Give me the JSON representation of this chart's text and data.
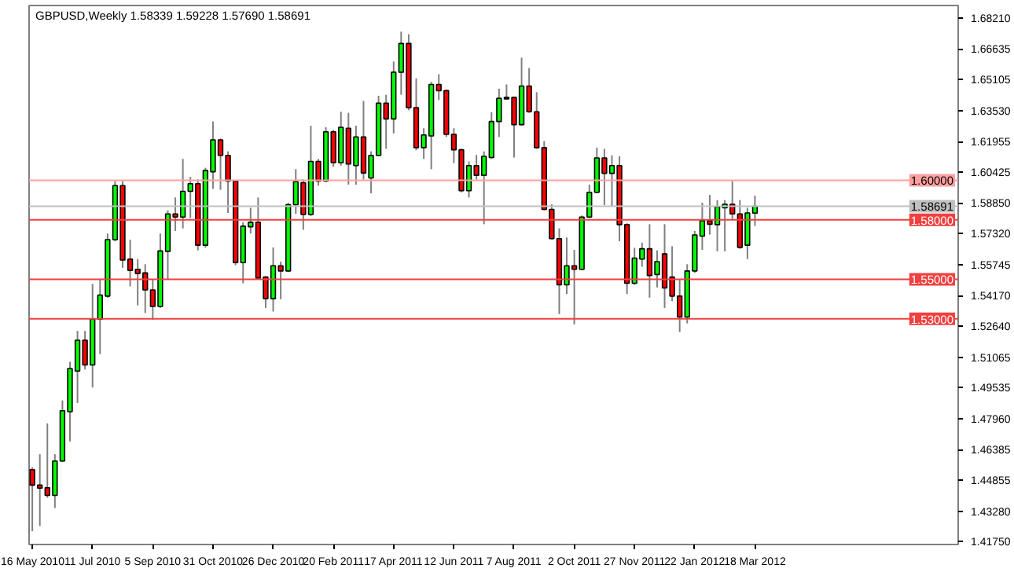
{
  "chart_data": {
    "type": "candlestick",
    "title": "GBPUSD,Weekly  1.58339 1.59228 1.57690 1.58691",
    "x": [
      "2010-05-16",
      "2010-05-23",
      "2010-05-30",
      "2010-06-06",
      "2010-06-13",
      "2010-06-20",
      "2010-06-27",
      "2010-07-04",
      "2010-07-11",
      "2010-07-18",
      "2010-07-25",
      "2010-08-01",
      "2010-08-08",
      "2010-08-15",
      "2010-08-22",
      "2010-08-29",
      "2010-09-05",
      "2010-09-12",
      "2010-09-19",
      "2010-09-26",
      "2010-10-03",
      "2010-10-10",
      "2010-10-17",
      "2010-10-24",
      "2010-10-31",
      "2010-11-07",
      "2010-11-14",
      "2010-11-21",
      "2010-11-28",
      "2010-12-05",
      "2010-12-12",
      "2010-12-19",
      "2010-12-26",
      "2011-01-02",
      "2011-01-09",
      "2011-01-16",
      "2011-01-23",
      "2011-01-30",
      "2011-02-06",
      "2011-02-13",
      "2011-02-20",
      "2011-02-27",
      "2011-03-06",
      "2011-03-13",
      "2011-03-20",
      "2011-03-27",
      "2011-04-03",
      "2011-04-10",
      "2011-04-17",
      "2011-04-24",
      "2011-05-01",
      "2011-05-08",
      "2011-05-15",
      "2011-05-22",
      "2011-05-29",
      "2011-06-05",
      "2011-06-12",
      "2011-06-19",
      "2011-06-26",
      "2011-07-03",
      "2011-07-10",
      "2011-07-17",
      "2011-07-24",
      "2011-07-31",
      "2011-08-07",
      "2011-08-14",
      "2011-08-21",
      "2011-08-28",
      "2011-09-04",
      "2011-09-11",
      "2011-09-18",
      "2011-09-25",
      "2011-10-02",
      "2011-10-09",
      "2011-10-16",
      "2011-10-23",
      "2011-10-30",
      "2011-11-06",
      "2011-11-13",
      "2011-11-20",
      "2011-11-27",
      "2011-12-04",
      "2011-12-11",
      "2011-12-18",
      "2011-12-25",
      "2012-01-01",
      "2012-01-08",
      "2012-01-15",
      "2012-01-22",
      "2012-01-29",
      "2012-02-05",
      "2012-02-12",
      "2012-02-19",
      "2012-02-26",
      "2012-03-04",
      "2012-03-11",
      "2012-03-18"
    ],
    "ohlc": [
      [
        1.4538,
        1.4551,
        1.4227,
        1.446
      ],
      [
        1.446,
        1.4616,
        1.4253,
        1.4445
      ],
      [
        1.4447,
        1.4772,
        1.4396,
        1.4408
      ],
      [
        1.4408,
        1.4616,
        1.4344,
        1.4582
      ],
      [
        1.4582,
        1.4888,
        1.4577,
        1.4836
      ],
      [
        1.4831,
        1.5083,
        1.4681,
        1.5049
      ],
      [
        1.5036,
        1.5239,
        1.4875,
        1.5192
      ],
      [
        1.5192,
        1.5239,
        1.5044,
        1.5067
      ],
      [
        1.5067,
        1.5477,
        1.4953,
        1.5298
      ],
      [
        1.5298,
        1.5498,
        1.5122,
        1.542
      ],
      [
        1.5415,
        1.5731,
        1.5407,
        1.57
      ],
      [
        1.57,
        1.5996,
        1.5692,
        1.5973
      ],
      [
        1.5973,
        1.5996,
        1.5558,
        1.5597
      ],
      [
        1.5602,
        1.57,
        1.5464,
        1.5545
      ],
      [
        1.555,
        1.5602,
        1.5368,
        1.5529
      ],
      [
        1.5532,
        1.5576,
        1.5329,
        1.5446
      ],
      [
        1.5446,
        1.5498,
        1.5296,
        1.5363
      ],
      [
        1.5363,
        1.5731,
        1.5355,
        1.5643
      ],
      [
        1.5641,
        1.5848,
        1.5498,
        1.583
      ],
      [
        1.583,
        1.5913,
        1.5744,
        1.5814
      ],
      [
        1.5814,
        1.6108,
        1.5757,
        1.5944
      ],
      [
        1.5944,
        1.6017,
        1.5809,
        1.5983
      ],
      [
        1.5983,
        1.6004,
        1.5646,
        1.5672
      ],
      [
        1.5672,
        1.6063,
        1.5659,
        1.605
      ],
      [
        1.6043,
        1.6297,
        1.5957,
        1.6204
      ],
      [
        1.6204,
        1.6211,
        1.5952,
        1.6126
      ],
      [
        1.6126,
        1.6146,
        1.5835,
        1.5996
      ],
      [
        1.5996,
        1.6001,
        1.5571,
        1.5584
      ],
      [
        1.5584,
        1.5788,
        1.548,
        1.5768
      ],
      [
        1.5765,
        1.5861,
        1.5731,
        1.5788
      ],
      [
        1.5788,
        1.5913,
        1.5498,
        1.5506
      ],
      [
        1.5511,
        1.5516,
        1.5355,
        1.5402
      ],
      [
        1.5402,
        1.5661,
        1.5337,
        1.5568
      ],
      [
        1.5568,
        1.5589,
        1.5399,
        1.5542
      ],
      [
        1.5542,
        1.5887,
        1.5537,
        1.5877
      ],
      [
        1.5877,
        1.6056,
        1.583,
        1.5993
      ],
      [
        1.5988,
        1.6004,
        1.575,
        1.5827
      ],
      [
        1.5827,
        1.6276,
        1.582,
        1.6095
      ],
      [
        1.6095,
        1.6108,
        1.5973,
        1.5996
      ],
      [
        1.5996,
        1.6268,
        1.5991,
        1.6245
      ],
      [
        1.6245,
        1.6255,
        1.6069,
        1.6089
      ],
      [
        1.6089,
        1.6346,
        1.6074,
        1.6268
      ],
      [
        1.6263,
        1.6341,
        1.5978,
        1.6082
      ],
      [
        1.6074,
        1.6276,
        1.5978,
        1.6219
      ],
      [
        1.6219,
        1.6401,
        1.6004,
        1.6037
      ],
      [
        1.6012,
        1.6146,
        1.5934,
        1.6126
      ],
      [
        1.6126,
        1.6427,
        1.6121,
        1.639
      ],
      [
        1.639,
        1.6432,
        1.6159,
        1.631
      ],
      [
        1.631,
        1.66,
        1.6237,
        1.6546
      ],
      [
        1.6546,
        1.6751,
        1.6432,
        1.6691
      ],
      [
        1.6691,
        1.6738,
        1.6354,
        1.6367
      ],
      [
        1.6367,
        1.6515,
        1.6152,
        1.6165
      ],
      [
        1.6165,
        1.6263,
        1.6108,
        1.6229
      ],
      [
        1.6224,
        1.6497,
        1.6056,
        1.6484
      ],
      [
        1.6484,
        1.6536,
        1.6406,
        1.6453
      ],
      [
        1.6453,
        1.6458,
        1.6219,
        1.6232
      ],
      [
        1.6232,
        1.6263,
        1.6087,
        1.6154
      ],
      [
        1.6154,
        1.6159,
        1.5939,
        1.5947
      ],
      [
        1.5947,
        1.6095,
        1.5913,
        1.6074
      ],
      [
        1.6074,
        1.6128,
        1.6004,
        1.6025
      ],
      [
        1.6025,
        1.6146,
        1.5778,
        1.6121
      ],
      [
        1.6115,
        1.6344,
        1.6108,
        1.6297
      ],
      [
        1.6297,
        1.6463,
        1.6219,
        1.6414
      ],
      [
        1.6411,
        1.6484,
        1.6411,
        1.6419
      ],
      [
        1.6419,
        1.6419,
        1.6115,
        1.6281
      ],
      [
        1.6281,
        1.6619,
        1.6276,
        1.6476
      ],
      [
        1.6476,
        1.6567,
        1.6341,
        1.6346
      ],
      [
        1.6346,
        1.6445,
        1.6159,
        1.6165
      ],
      [
        1.6165,
        1.6198,
        1.5848,
        1.5853
      ],
      [
        1.5853,
        1.5879,
        1.57,
        1.5705
      ],
      [
        1.5705,
        1.5757,
        1.5324,
        1.5472
      ],
      [
        1.5472,
        1.5711,
        1.5425,
        1.5568
      ],
      [
        1.5568,
        1.5648,
        1.5272,
        1.555
      ],
      [
        1.555,
        1.5822,
        1.5545,
        1.5814
      ],
      [
        1.5814,
        1.5978,
        1.5809,
        1.5939
      ],
      [
        1.5939,
        1.6165,
        1.5934,
        1.6113
      ],
      [
        1.6113,
        1.6159,
        1.5874,
        1.6035
      ],
      [
        1.6035,
        1.6126,
        1.5869,
        1.6074
      ],
      [
        1.6074,
        1.6121,
        1.5692,
        1.5776
      ],
      [
        1.5776,
        1.5783,
        1.5425,
        1.548
      ],
      [
        1.548,
        1.5659,
        1.5472,
        1.5607
      ],
      [
        1.5602,
        1.5685,
        1.5563,
        1.5654
      ],
      [
        1.5654,
        1.5778,
        1.5407,
        1.5519
      ],
      [
        1.5524,
        1.5646,
        1.5459,
        1.5589
      ],
      [
        1.5628,
        1.5778,
        1.5355,
        1.5456
      ],
      [
        1.5511,
        1.5667,
        1.5389,
        1.5415
      ],
      [
        1.5415,
        1.5498,
        1.5233,
        1.5309
      ],
      [
        1.5309,
        1.5576,
        1.5277,
        1.5542
      ],
      [
        1.5542,
        1.5744,
        1.5532,
        1.5724
      ],
      [
        1.5718,
        1.5887,
        1.5648,
        1.5796
      ],
      [
        1.5796,
        1.5926,
        1.5726,
        1.5778
      ],
      [
        1.5776,
        1.59,
        1.5641,
        1.5866
      ],
      [
        1.5861,
        1.59,
        1.5641,
        1.5879
      ],
      [
        1.5879,
        1.5996,
        1.5801,
        1.583
      ],
      [
        1.583,
        1.59,
        1.5654,
        1.5661
      ],
      [
        1.5672,
        1.5861,
        1.5602,
        1.5835
      ],
      [
        1.58339,
        1.59228,
        1.5769,
        1.58691
      ]
    ],
    "xlim": [
      "2010-05-13",
      "2012-09-23"
    ],
    "xticks": [
      {
        "value": "2010-05-16",
        "label": "16 May 2010"
      },
      {
        "value": "2010-07-11",
        "label": "11 Jul 2010"
      },
      {
        "value": "2010-09-05",
        "label": "5 Sep 2010"
      },
      {
        "value": "2010-10-31",
        "label": "31 Oct 2010"
      },
      {
        "value": "2010-12-26",
        "label": "26 Dec 2010"
      },
      {
        "value": "2011-02-20",
        "label": "20 Feb 2011"
      },
      {
        "value": "2011-04-17",
        "label": "17 Apr 2011"
      },
      {
        "value": "2011-06-12",
        "label": "12 Jun 2011"
      },
      {
        "value": "2011-08-07",
        "label": "7 Aug 2011"
      },
      {
        "value": "2011-10-02",
        "label": "2 Oct 2011"
      },
      {
        "value": "2011-11-27",
        "label": "27 Nov 2011"
      },
      {
        "value": "2012-01-22",
        "label": "22 Jan 2012"
      },
      {
        "value": "2012-03-18",
        "label": "18 Mar 2012"
      }
    ],
    "ylim": [
      1.416,
      1.6883
    ],
    "yticks": [
      {
        "value": 1.6821,
        "label": "1.68210"
      },
      {
        "value": 1.66635,
        "label": "1.66635"
      },
      {
        "value": 1.65105,
        "label": "1.65105"
      },
      {
        "value": 1.6353,
        "label": "1.63530"
      },
      {
        "value": 1.61955,
        "label": "1.61955"
      },
      {
        "value": 1.60425,
        "label": "1.60425"
      },
      {
        "value": 1.5885,
        "label": "1.58850"
      },
      {
        "value": 1.5732,
        "label": "1.57320"
      },
      {
        "value": 1.55745,
        "label": "1.55745"
      },
      {
        "value": 1.5417,
        "label": "1.54170"
      },
      {
        "value": 1.5264,
        "label": "1.52640"
      },
      {
        "value": 1.51065,
        "label": "1.51065"
      },
      {
        "value": 1.49535,
        "label": "1.49535"
      },
      {
        "value": 1.4796,
        "label": "1.47960"
      },
      {
        "value": 1.46385,
        "label": "1.46385"
      },
      {
        "value": 1.44855,
        "label": "1.44855"
      },
      {
        "value": 1.4328,
        "label": "1.43280"
      },
      {
        "value": 1.4175,
        "label": "1.41750"
      }
    ],
    "ref_lines": [
      {
        "axis": "y",
        "value": 1.6,
        "label": "1.60000",
        "color": "#ffa0a0"
      },
      {
        "axis": "y",
        "value": 1.58691,
        "label": "1.58691",
        "color": "#c0c0c0"
      },
      {
        "axis": "y",
        "value": 1.58,
        "label": "1.58000",
        "color": "#f04040"
      },
      {
        "axis": "y",
        "value": 1.55,
        "label": "1.55000",
        "color": "#f04040"
      },
      {
        "axis": "y",
        "value": 1.53,
        "label": "1.53000",
        "color": "#f04040"
      }
    ]
  }
}
